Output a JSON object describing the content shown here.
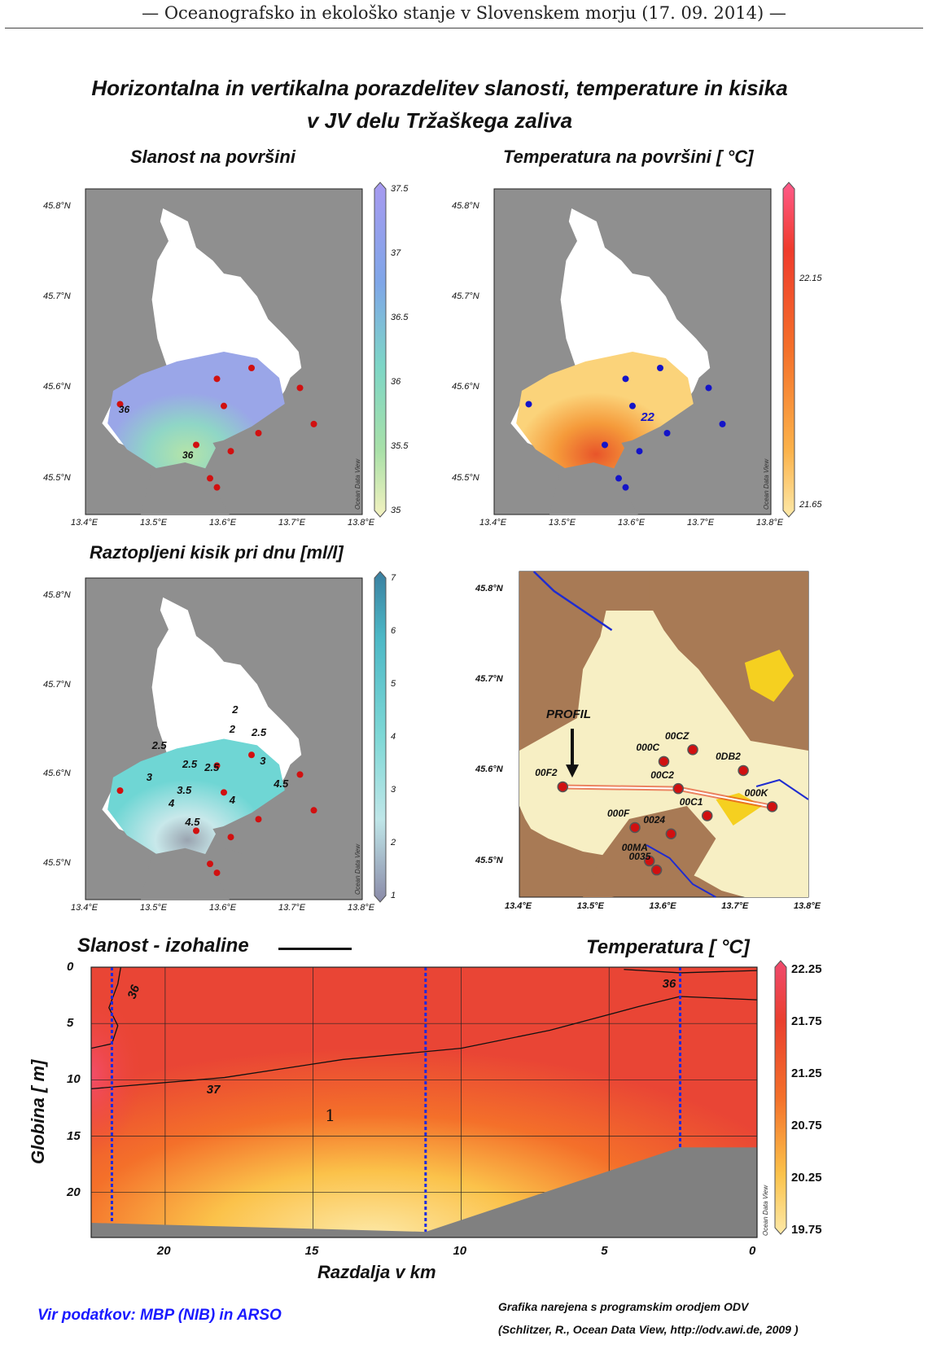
{
  "header": "— Oceanografsko in ekološko stanje v Slovenskem morju (17. 09. 2014) —",
  "title_line1": "Horizontalna in vertikalna porazdelitev slanosti, temperature in kisika",
  "title_line2": "v JV delu Tržaškega zaliva",
  "colors": {
    "land": "#909090",
    "sea": "#ffffff",
    "dot_red": "#d11010",
    "dot_blue": "#1414c8",
    "map_land": "#a87a55",
    "map_sea": "#f7efc4"
  },
  "lat_ticks": [
    "45.8°N",
    "45.7°N",
    "45.6°N",
    "45.5°N"
  ],
  "lon_ticks": [
    "13.4°E",
    "13.5°E",
    "13.6°E",
    "13.7°E",
    "13.8°E"
  ],
  "odv_mark": "Ocean Data View",
  "chart_data": [
    {
      "type": "heatmap",
      "title": "Slanost na površini",
      "colorbar": {
        "ticks": [
          "37.5",
          "37",
          "36.5",
          "36",
          "35.5",
          "35"
        ]
      },
      "contour_labels": [
        "36",
        "36"
      ],
      "stations": [
        [
          13.59,
          45.61
        ],
        [
          13.64,
          45.622
        ],
        [
          13.71,
          45.6
        ],
        [
          13.6,
          45.58
        ],
        [
          13.45,
          45.582
        ],
        [
          13.73,
          45.56
        ],
        [
          13.65,
          45.55
        ],
        [
          13.56,
          45.537
        ],
        [
          13.61,
          45.53
        ],
        [
          13.58,
          45.5
        ],
        [
          13.59,
          45.49
        ]
      ]
    },
    {
      "type": "heatmap",
      "title": "Temperatura na površini [ °C]",
      "colorbar": {
        "ticks": [
          "22.15",
          "21.65"
        ]
      },
      "contour_labels": [
        "22"
      ],
      "stations": [
        [
          13.59,
          45.61
        ],
        [
          13.64,
          45.622
        ],
        [
          13.71,
          45.6
        ],
        [
          13.6,
          45.58
        ],
        [
          13.45,
          45.582
        ],
        [
          13.73,
          45.56
        ],
        [
          13.65,
          45.55
        ],
        [
          13.56,
          45.537
        ],
        [
          13.61,
          45.53
        ],
        [
          13.58,
          45.5
        ],
        [
          13.59,
          45.49
        ]
      ]
    },
    {
      "type": "heatmap",
      "title": "Raztopljeni kisik pri dnu [ml/l]",
      "colorbar": {
        "ticks": [
          "7",
          "6",
          "5",
          "4",
          "3",
          "2",
          "1"
        ]
      },
      "contour_labels": [
        "2.5",
        "2",
        "2.5",
        "2.5",
        "3",
        "3",
        "3.5",
        "4",
        "4",
        "4.5",
        "4.5",
        "2",
        "2.5"
      ],
      "stations": [
        [
          13.59,
          45.61
        ],
        [
          13.64,
          45.622
        ],
        [
          13.71,
          45.6
        ],
        [
          13.6,
          45.58
        ],
        [
          13.45,
          45.582
        ],
        [
          13.73,
          45.56
        ],
        [
          13.65,
          45.55
        ],
        [
          13.56,
          45.537
        ],
        [
          13.61,
          45.53
        ],
        [
          13.58,
          45.5
        ],
        [
          13.59,
          45.49
        ]
      ]
    },
    {
      "type": "scatter",
      "title": "",
      "profil_label": "PROFIL",
      "stations": [
        {
          "name": "00CZ",
          "lon": 13.64,
          "lat": 45.623
        },
        {
          "name": "000C",
          "lon": 13.6,
          "lat": 45.61
        },
        {
          "name": "0DB2",
          "lon": 13.71,
          "lat": 45.6
        },
        {
          "name": "00F2",
          "lon": 13.46,
          "lat": 45.582
        },
        {
          "name": "00C2",
          "lon": 13.62,
          "lat": 45.58
        },
        {
          "name": "000K",
          "lon": 13.75,
          "lat": 45.56
        },
        {
          "name": "00C1",
          "lon": 13.66,
          "lat": 45.55
        },
        {
          "name": "000F",
          "lon": 13.56,
          "lat": 45.537
        },
        {
          "name": "0024",
          "lon": 13.61,
          "lat": 45.53
        },
        {
          "name": "00MA",
          "lon": 13.58,
          "lat": 45.5
        },
        {
          "name": "0035",
          "lon": 13.59,
          "lat": 45.49
        }
      ]
    },
    {
      "type": "heatmap",
      "title_left": "Slanost - izohaline",
      "title_right": "Temperatura  [ °C]",
      "xlabel": "Razdalja v km",
      "ylabel": "Globina  [ m]",
      "xticks": [
        "20",
        "15",
        "10",
        "5",
        "0"
      ],
      "yticks": [
        "0",
        "5",
        "10",
        "15",
        "20"
      ],
      "xlim": [
        22.5,
        0
      ],
      "ylim": [
        0,
        24
      ],
      "colorbar": {
        "ticks": [
          "22.25",
          "21.75",
          "21.25",
          "20.75",
          "20.25",
          "19.75"
        ]
      },
      "contour_labels": [
        "36",
        "37",
        "36"
      ],
      "station_km": [
        21.8,
        11.2,
        2.6
      ],
      "annotation": "1"
    }
  ],
  "footer_left": "Vir podatkov: MBP (NIB) in ARSO",
  "footer_right1": "Grafika narejena s programskim orodjem ODV",
  "footer_right2": "(Schlitzer, R., Ocean Data View, http://odv.awi.de, 2009 )"
}
